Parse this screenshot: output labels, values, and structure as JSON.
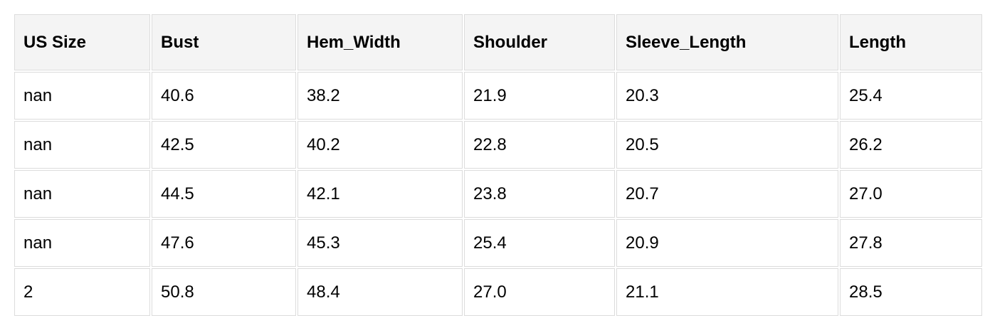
{
  "table": {
    "headers": [
      "US Size",
      "Bust",
      "Hem_Width",
      "Shoulder",
      "Sleeve_Length",
      "Length"
    ],
    "rows": [
      [
        "nan",
        "40.6",
        "38.2",
        "21.9",
        "20.3",
        "25.4"
      ],
      [
        "nan",
        "42.5",
        "40.2",
        "22.8",
        "20.5",
        "26.2"
      ],
      [
        "nan",
        "44.5",
        "42.1",
        "23.8",
        "20.7",
        "27.0"
      ],
      [
        "nan",
        "47.6",
        "45.3",
        "25.4",
        "20.9",
        "27.8"
      ],
      [
        "2",
        "50.8",
        "48.4",
        "27.0",
        "21.1",
        "28.5"
      ]
    ]
  }
}
